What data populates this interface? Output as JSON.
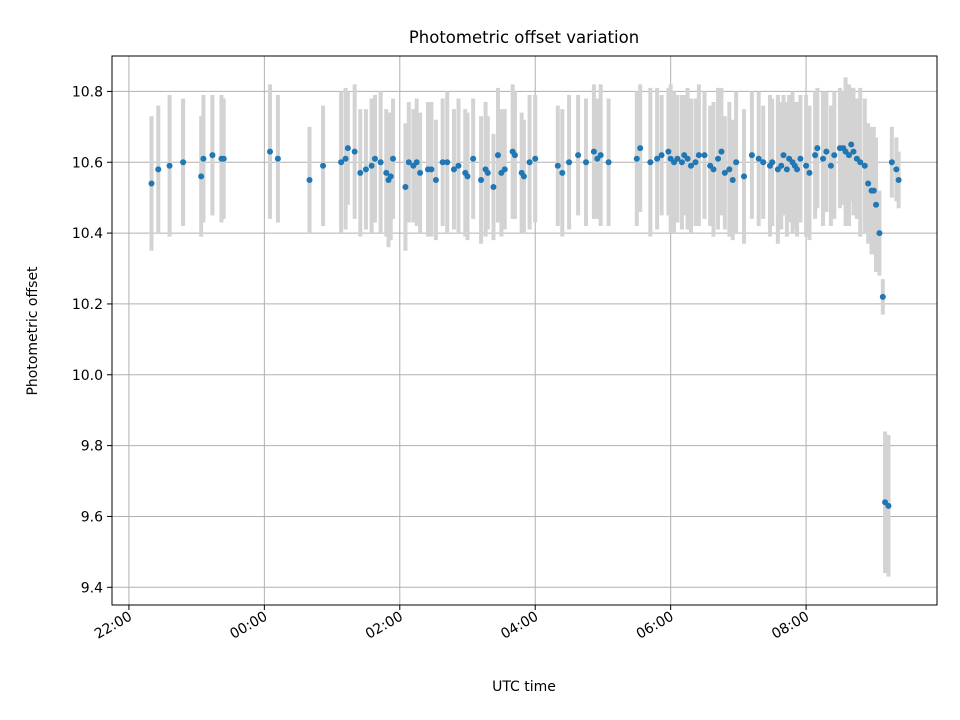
{
  "chart_data": {
    "type": "scatter",
    "title": "Photometric offset variation",
    "xlabel": "UTC time",
    "ylabel": "Photometric offset",
    "x_ticks": [
      "22:00",
      "00:00",
      "02:00",
      "04:00",
      "06:00",
      "08:00"
    ],
    "y_ticks": [
      "9.4",
      "9.6",
      "9.8",
      "10.0",
      "10.2",
      "10.4",
      "10.6",
      "10.8"
    ],
    "xlim": [
      "21:45",
      "09:56"
    ],
    "ylim": [
      9.35,
      10.9
    ],
    "grid": true,
    "colors": {
      "points": "#1f77b4",
      "errorbars": "#d3d3d3",
      "grid": "#b0b0b0"
    },
    "series": [
      {
        "x": [
          "22:20",
          "22:26",
          "22:36",
          "22:48",
          "23:04",
          "23:06",
          "23:14",
          "23:22",
          "23:24",
          "00:05",
          "00:12",
          "00:40",
          "00:52",
          "01:08",
          "01:12",
          "01:14",
          "01:20",
          "01:25",
          "01:30",
          "01:35",
          "01:38",
          "01:43",
          "01:48",
          "01:50",
          "01:52",
          "01:54",
          "02:05",
          "02:08",
          "02:12",
          "02:15",
          "02:18",
          "02:25",
          "02:28",
          "02:32",
          "02:38",
          "02:42",
          "02:48",
          "02:52",
          "02:58",
          "03:00",
          "03:05",
          "03:12",
          "03:16",
          "03:18",
          "03:23",
          "03:27",
          "03:30",
          "03:33",
          "03:40",
          "03:42",
          "03:48",
          "03:50",
          "03:55",
          "04:00",
          "04:20",
          "04:24",
          "04:30",
          "04:38",
          "04:45",
          "04:52",
          "04:55",
          "04:58",
          "05:05",
          "05:30",
          "05:33",
          "05:42",
          "05:48",
          "05:52",
          "05:58",
          "06:00",
          "06:03",
          "06:06",
          "06:10",
          "06:12",
          "06:15",
          "06:18",
          "06:22",
          "06:25",
          "06:30",
          "06:35",
          "06:38",
          "06:42",
          "06:45",
          "06:48",
          "06:52",
          "06:55",
          "06:58",
          "07:05",
          "07:12",
          "07:18",
          "07:22",
          "07:28",
          "07:30",
          "07:35",
          "07:38",
          "07:40",
          "07:43",
          "07:45",
          "07:48",
          "07:50",
          "07:52",
          "07:55",
          "08:00",
          "08:03",
          "08:08",
          "08:10",
          "08:15",
          "08:18",
          "08:22",
          "08:25",
          "08:30",
          "08:33",
          "08:35",
          "08:38",
          "08:40",
          "08:42",
          "08:45",
          "08:48",
          "08:52",
          "08:55",
          "08:58",
          "09:00",
          "09:02",
          "09:05",
          "09:08",
          "09:10",
          "09:13",
          "09:16",
          "09:20",
          "09:22"
        ],
        "y": [
          10.54,
          10.58,
          10.59,
          10.6,
          10.56,
          10.61,
          10.62,
          10.61,
          10.61,
          10.63,
          10.61,
          10.55,
          10.59,
          10.6,
          10.61,
          10.64,
          10.63,
          10.57,
          10.58,
          10.59,
          10.61,
          10.6,
          10.57,
          10.55,
          10.56,
          10.61,
          10.53,
          10.6,
          10.59,
          10.6,
          10.57,
          10.58,
          10.58,
          10.55,
          10.6,
          10.6,
          10.58,
          10.59,
          10.57,
          10.56,
          10.61,
          10.55,
          10.58,
          10.57,
          10.53,
          10.62,
          10.57,
          10.58,
          10.63,
          10.62,
          10.57,
          10.56,
          10.6,
          10.61,
          10.59,
          10.57,
          10.6,
          10.62,
          10.6,
          10.63,
          10.61,
          10.62,
          10.6,
          10.61,
          10.64,
          10.6,
          10.61,
          10.62,
          10.63,
          10.61,
          10.6,
          10.61,
          10.6,
          10.62,
          10.61,
          10.59,
          10.6,
          10.62,
          10.62,
          10.59,
          10.58,
          10.61,
          10.63,
          10.57,
          10.58,
          10.55,
          10.6,
          10.56,
          10.62,
          10.61,
          10.6,
          10.59,
          10.6,
          10.58,
          10.59,
          10.62,
          10.58,
          10.61,
          10.6,
          10.59,
          10.58,
          10.61,
          10.59,
          10.57,
          10.62,
          10.64,
          10.61,
          10.63,
          10.59,
          10.62,
          10.64,
          10.64,
          10.63,
          10.62,
          10.65,
          10.63,
          10.61,
          10.6,
          10.59,
          10.54,
          10.52,
          10.52,
          10.48,
          10.4,
          10.22,
          9.64,
          9.63,
          10.6,
          10.58,
          10.55
        ],
        "yerr": [
          0.19,
          0.18,
          0.2,
          0.18,
          0.17,
          0.18,
          0.17,
          0.18,
          0.17,
          0.19,
          0.18,
          0.15,
          0.17,
          0.2,
          0.2,
          0.16,
          0.19,
          0.18,
          0.17,
          0.19,
          0.18,
          0.2,
          0.18,
          0.19,
          0.18,
          0.17,
          0.18,
          0.17,
          0.16,
          0.18,
          0.17,
          0.19,
          0.19,
          0.17,
          0.18,
          0.2,
          0.17,
          0.19,
          0.18,
          0.18,
          0.17,
          0.18,
          0.19,
          0.16,
          0.15,
          0.19,
          0.18,
          0.17,
          0.19,
          0.18,
          0.17,
          0.16,
          0.19,
          0.18,
          0.17,
          0.18,
          0.19,
          0.17,
          0.18,
          0.19,
          0.17,
          0.2,
          0.18,
          0.19,
          0.18,
          0.21,
          0.2,
          0.17,
          0.18,
          0.21,
          0.2,
          0.18,
          0.19,
          0.17,
          0.2,
          0.19,
          0.18,
          0.2,
          0.18,
          0.17,
          0.19,
          0.2,
          0.18,
          0.16,
          0.19,
          0.17,
          0.2,
          0.19,
          0.18,
          0.19,
          0.16,
          0.2,
          0.18,
          0.21,
          0.18,
          0.17,
          0.19,
          0.18,
          0.2,
          0.18,
          0.19,
          0.18,
          0.2,
          0.19,
          0.18,
          0.17,
          0.19,
          0.17,
          0.17,
          0.18,
          0.17,
          0.16,
          0.21,
          0.2,
          0.16,
          0.18,
          0.17,
          0.21,
          0.19,
          0.17,
          0.18,
          0.18,
          0.19,
          0.12,
          0.05,
          0.2,
          0.2,
          0.1,
          0.09,
          0.08
        ]
      }
    ]
  }
}
